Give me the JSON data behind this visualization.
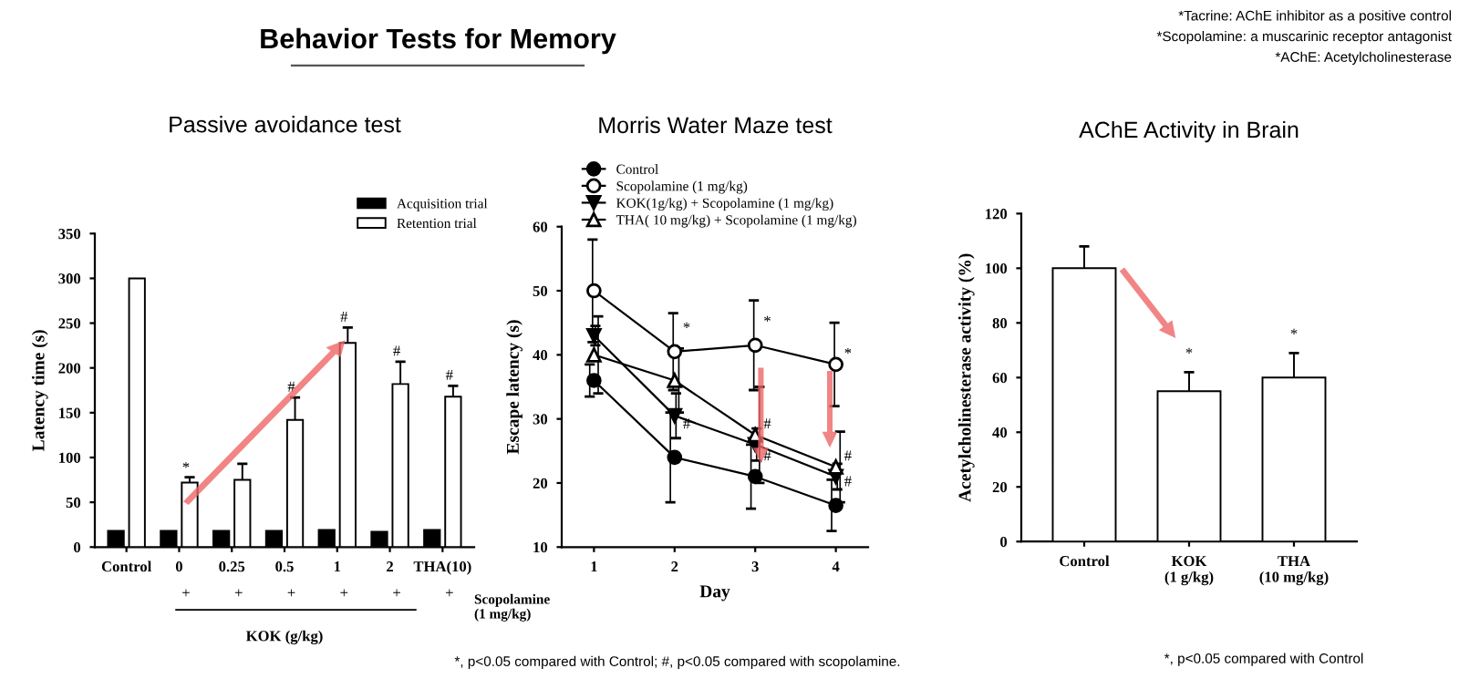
{
  "chart_data": [
    {
      "type": "other",
      "title": "Behavior Tests for Memory",
      "annotations": [
        "*Tacrine: AChE inhibitor as a positive control",
        "*Scopolamine: a muscarinic receptor antagonist",
        "*AChE: Acetylcholinesterase"
      ]
    },
    {
      "type": "bar",
      "title": "Passive avoidance test",
      "ylabel": "Latency time (s)",
      "xlabel": "KOK (g/kg)",
      "categories": [
        "Control",
        "0",
        "0.25",
        "0.5",
        "1",
        "2",
        "THA(10)"
      ],
      "series": [
        {
          "name": "Acquisition trial",
          "color": "#000000",
          "values": [
            18,
            18,
            18,
            18,
            19,
            17,
            19
          ]
        },
        {
          "name": "Retention trial",
          "color": "#ffffff",
          "values": [
            300,
            72,
            75,
            142,
            228,
            182,
            168
          ],
          "errors": [
            null,
            6,
            18,
            25,
            17,
            25,
            12
          ]
        }
      ],
      "ylim": [
        0,
        350
      ],
      "yticks": [
        0,
        50,
        100,
        150,
        200,
        250,
        300,
        350
      ],
      "legend": "top right",
      "annotations": [
        "*",
        "#",
        "#",
        "#",
        "#",
        "+",
        "+",
        "+",
        "+",
        "+",
        "+",
        "Scopolamine\n(1 mg/kg)"
      ]
    },
    {
      "type": "line",
      "title": "Morris Water Maze test",
      "xlabel": "Day",
      "ylabel": "Escape latency (s)",
      "x": [
        1,
        2,
        3,
        4
      ],
      "xlim": [
        0.6,
        4.4
      ],
      "xticks": [
        1,
        2,
        3,
        4
      ],
      "ylim": [
        10,
        60
      ],
      "yticks": [
        10,
        20,
        30,
        40,
        50,
        60
      ],
      "legend": "top",
      "line_style": "solid",
      "series": [
        {
          "name": "Control",
          "color": "#000000",
          "marker": "circle",
          "values": [
            36,
            24,
            21,
            16.5
          ],
          "errors": [
            2.5,
            7,
            5,
            4
          ]
        },
        {
          "name": "Scopolamine (1 mg/kg)",
          "color": "#000000",
          "marker": "circle",
          "values": [
            50,
            40.5,
            41.5,
            38.5
          ],
          "errors": [
            8,
            6,
            7,
            6.5
          ]
        },
        {
          "name": "KOK(1g/kg) + Scopolamine (1 mg/kg)",
          "color": "#000000",
          "marker": "triangle",
          "values": [
            43,
            30.5,
            26,
            21
          ],
          "errors": [
            1.5,
            3.5,
            2.5,
            2
          ]
        },
        {
          "name": "THA( 10 mg/kg) + Scopolamine (1 mg/kg)",
          "color": "#000000",
          "marker": "triangle",
          "values": [
            40,
            36,
            27.5,
            22.5
          ],
          "errors": [
            6,
            5,
            7.5,
            5.5
          ]
        }
      ],
      "annotations": [
        "*",
        "*",
        "*",
        "#",
        "#",
        "#",
        "#",
        "#",
        "*, p<0.05 compared with Control; #, p<0.05 compared with scopolamine."
      ]
    },
    {
      "type": "bar",
      "title": "AChE Activity in Brain",
      "ylabel": "Acetylcholinesterase activity (%)",
      "categories": [
        "Control",
        "KOK\n(1 g/kg)",
        "THA\n(10 mg/kg)"
      ],
      "series": [
        {
          "color": "#ffffff",
          "values": [
            100,
            55,
            60
          ],
          "errors": [
            8,
            7,
            9
          ]
        }
      ],
      "ylim": [
        0,
        120
      ],
      "yticks": [
        0,
        20,
        40,
        60,
        80,
        100,
        120
      ],
      "annotations": [
        "*",
        "*",
        "*, p<0.05 compared with Control"
      ]
    }
  ]
}
